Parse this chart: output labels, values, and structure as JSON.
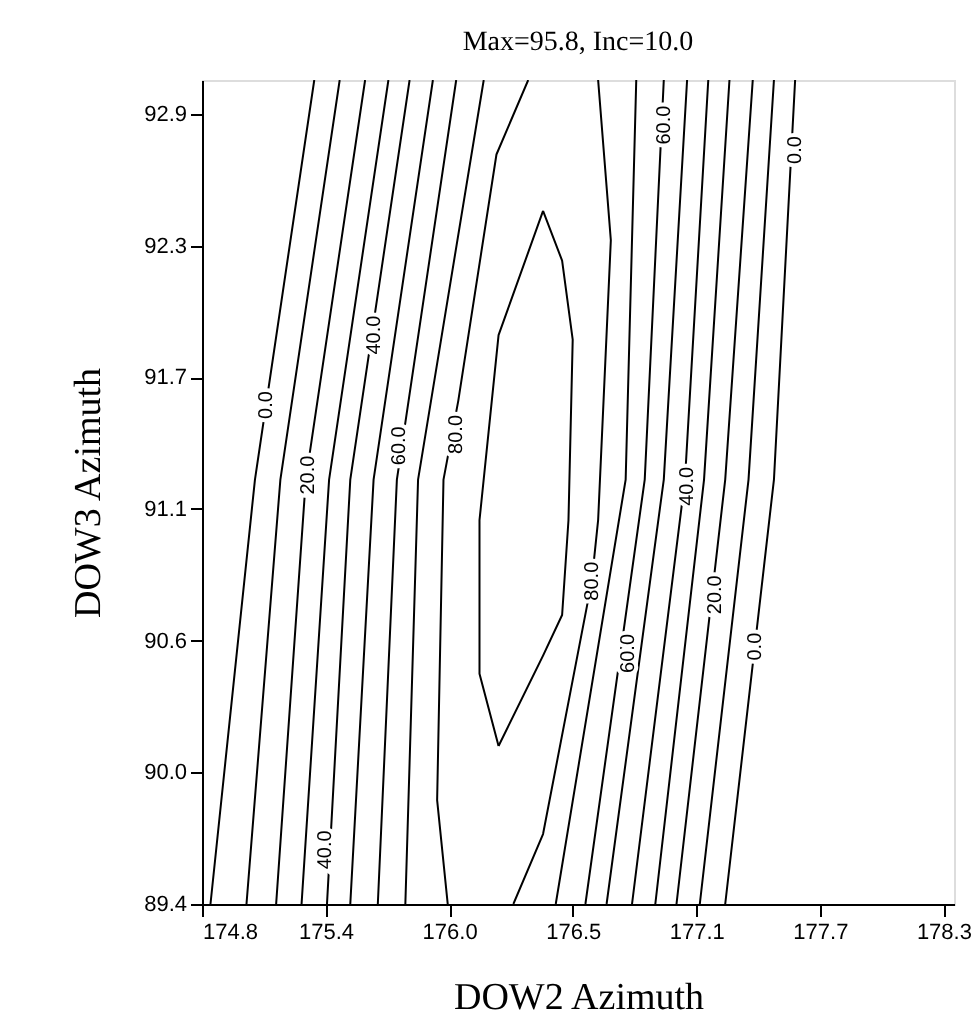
{
  "chart_data": {
    "type": "line",
    "title": "Max=95.8, Inc=10.0",
    "xlabel": "DOW2 Azimuth",
    "ylabel": "DOW3 Azimuth",
    "xlim": [
      174.8,
      178.35
    ],
    "ylim": [
      89.4,
      93.05
    ],
    "xticks": [
      174.8,
      {
        "value": 175.3833,
        "label": "175.4"
      },
      {
        "value": 175.9667,
        "label": "176.0"
      },
      {
        "value": 176.55,
        "label": "176.5"
      },
      {
        "value": 177.1333,
        "label": "177.1"
      },
      {
        "value": 177.7167,
        "label": "177.7"
      },
      178.3
    ],
    "yticks": [
      89.4,
      {
        "value": 89.9833,
        "label": "90.0"
      },
      {
        "value": 90.5667,
        "label": "90.6"
      },
      {
        "value": 91.15,
        "label": "91.1"
      },
      {
        "value": 91.7333,
        "label": "91.7"
      },
      {
        "value": 92.3167,
        "label": "92.3"
      },
      92.9
    ],
    "grid": false,
    "marker": "none",
    "line_style": "solid",
    "series": [
      {
        "color": "#000000",
        "x": [
          175.33,
          175.05,
          174.84
        ],
        "values": [
          93.05,
          91.28,
          89.4
        ]
      },
      {
        "color": "#000000",
        "x": [
          175.45,
          175.17,
          175.01
        ],
        "values": [
          93.05,
          91.28,
          89.4
        ]
      },
      {
        "color": "#000000",
        "x": [
          175.57,
          175.29,
          175.15
        ],
        "values": [
          93.05,
          91.28,
          89.4
        ]
      },
      {
        "color": "#000000",
        "x": [
          175.68,
          175.4,
          175.27
        ],
        "values": [
          93.05,
          91.28,
          89.4
        ]
      },
      {
        "color": "#000000",
        "x": [
          175.78,
          175.5,
          175.39
        ],
        "values": [
          93.05,
          91.28,
          89.4
        ]
      },
      {
        "color": "#000000",
        "x": [
          175.89,
          175.61,
          175.5
        ],
        "values": [
          93.05,
          91.28,
          89.4
        ]
      },
      {
        "color": "#000000",
        "x": [
          176.0,
          175.72,
          175.63
        ],
        "values": [
          93.05,
          91.28,
          89.4
        ]
      },
      {
        "color": "#000000",
        "x": [
          176.13,
          175.82,
          175.76
        ],
        "values": [
          93.05,
          91.28,
          89.4
        ]
      },
      {
        "color": "#000000",
        "x": [
          176.34,
          176.19,
          176.01,
          175.94,
          175.91,
          175.96
        ],
        "values": [
          93.05,
          92.72,
          91.63,
          91.28,
          89.86,
          89.4
        ]
      },
      {
        "color": "#000000",
        "x": [
          176.41,
          176.5,
          176.55,
          176.53,
          176.5,
          176.41,
          176.2
        ],
        "values": [
          92.47,
          92.25,
          91.9,
          91.1,
          90.68,
          90.5,
          90.1
        ]
      },
      {
        "color": "#000000",
        "x": [
          176.2,
          176.11,
          176.11,
          176.2,
          176.41
        ],
        "values": [
          90.1,
          90.42,
          91.1,
          91.92,
          92.47
        ]
      },
      {
        "color": "#000000",
        "x": [
          176.67,
          176.73,
          176.67,
          176.64,
          176.41,
          176.27
        ],
        "values": [
          93.05,
          92.34,
          91.1,
          90.83,
          89.71,
          89.4
        ]
      },
      {
        "color": "#000000",
        "x": [
          176.85,
          176.8,
          176.47
        ],
        "values": [
          93.05,
          91.28,
          89.4
        ]
      },
      {
        "color": "#000000",
        "x": [
          176.98,
          176.89,
          176.61
        ],
        "values": [
          93.05,
          91.28,
          89.4
        ]
      },
      {
        "color": "#000000",
        "x": [
          177.09,
          176.98,
          176.71
        ],
        "values": [
          93.05,
          91.28,
          89.4
        ]
      },
      {
        "color": "#000000",
        "x": [
          177.19,
          177.08,
          176.83
        ],
        "values": [
          93.05,
          91.28,
          89.4
        ]
      },
      {
        "color": "#000000",
        "x": [
          177.29,
          177.17,
          176.94
        ],
        "values": [
          93.05,
          91.28,
          89.4
        ]
      },
      {
        "color": "#000000",
        "x": [
          177.4,
          177.27,
          177.04
        ],
        "values": [
          93.05,
          91.28,
          89.4
        ]
      },
      {
        "color": "#000000",
        "x": [
          177.5,
          177.38,
          177.15
        ],
        "values": [
          93.05,
          91.28,
          89.4
        ]
      },
      {
        "color": "#000000",
        "x": [
          177.6,
          177.5,
          177.27
        ],
        "values": [
          93.05,
          91.28,
          89.4
        ]
      }
    ],
    "annotations": [
      {
        "text": "0.0",
        "x": 175.1,
        "y": 91.61
      },
      {
        "text": "20.0",
        "x": 175.3,
        "y": 91.3
      },
      {
        "text": "40.0",
        "x": 175.61,
        "y": 91.92
      },
      {
        "text": "60.0",
        "x": 175.73,
        "y": 91.43
      },
      {
        "text": "80.0",
        "x": 176.0,
        "y": 91.48
      },
      {
        "text": "40.0",
        "x": 175.38,
        "y": 89.64
      },
      {
        "text": "60.0",
        "x": 176.98,
        "y": 92.85
      },
      {
        "text": "0.0",
        "x": 177.6,
        "y": 92.74
      },
      {
        "text": "40.0",
        "x": 177.09,
        "y": 91.25
      },
      {
        "text": "80.0",
        "x": 176.64,
        "y": 90.83
      },
      {
        "text": "60.0",
        "x": 176.81,
        "y": 90.51
      },
      {
        "text": "20.0",
        "x": 177.22,
        "y": 90.77
      },
      {
        "text": "0.0",
        "x": 177.41,
        "y": 90.54
      }
    ]
  }
}
